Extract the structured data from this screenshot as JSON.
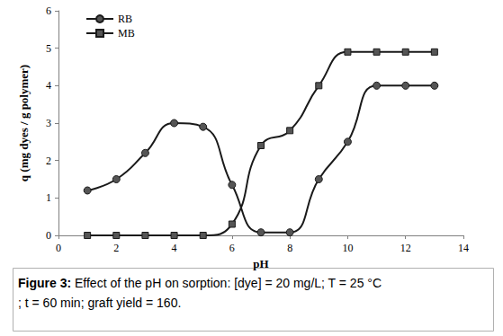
{
  "chart_data": {
    "type": "line",
    "x_label": "pH",
    "y_label": "q (mg dyes / g polymer)",
    "caption_label": "Figure 3:",
    "caption": "Effect of the pH on sorption: [dye] = 20 mg/L; T = 25 °C; t = 60 min; graft yield = 160.",
    "x": [
      1,
      2,
      3,
      4,
      5,
      6,
      7,
      8,
      9,
      10,
      11,
      12,
      13
    ],
    "series": [
      {
        "name": "RB",
        "color": "#1a1a1a",
        "marker": "circle",
        "values": [
          1.2,
          1.5,
          2.2,
          3.0,
          2.9,
          1.35,
          0.08,
          0.08,
          1.5,
          2.5,
          4.0,
          4.0,
          4.0
        ]
      },
      {
        "name": "MB",
        "color": "#1a1a1a",
        "marker": "square",
        "values": [
          0,
          0,
          0,
          0,
          0,
          0.3,
          2.4,
          2.8,
          4.0,
          4.9,
          4.9,
          4.9,
          4.9
        ]
      }
    ],
    "xlim": [
      0,
      14
    ],
    "xticks": [
      0,
      2,
      4,
      6,
      8,
      10,
      12,
      14
    ],
    "ylim": [
      0,
      6
    ],
    "yticks": [
      0,
      1,
      2,
      3,
      4,
      5,
      6
    ],
    "grid": false,
    "legend": "top-left"
  }
}
